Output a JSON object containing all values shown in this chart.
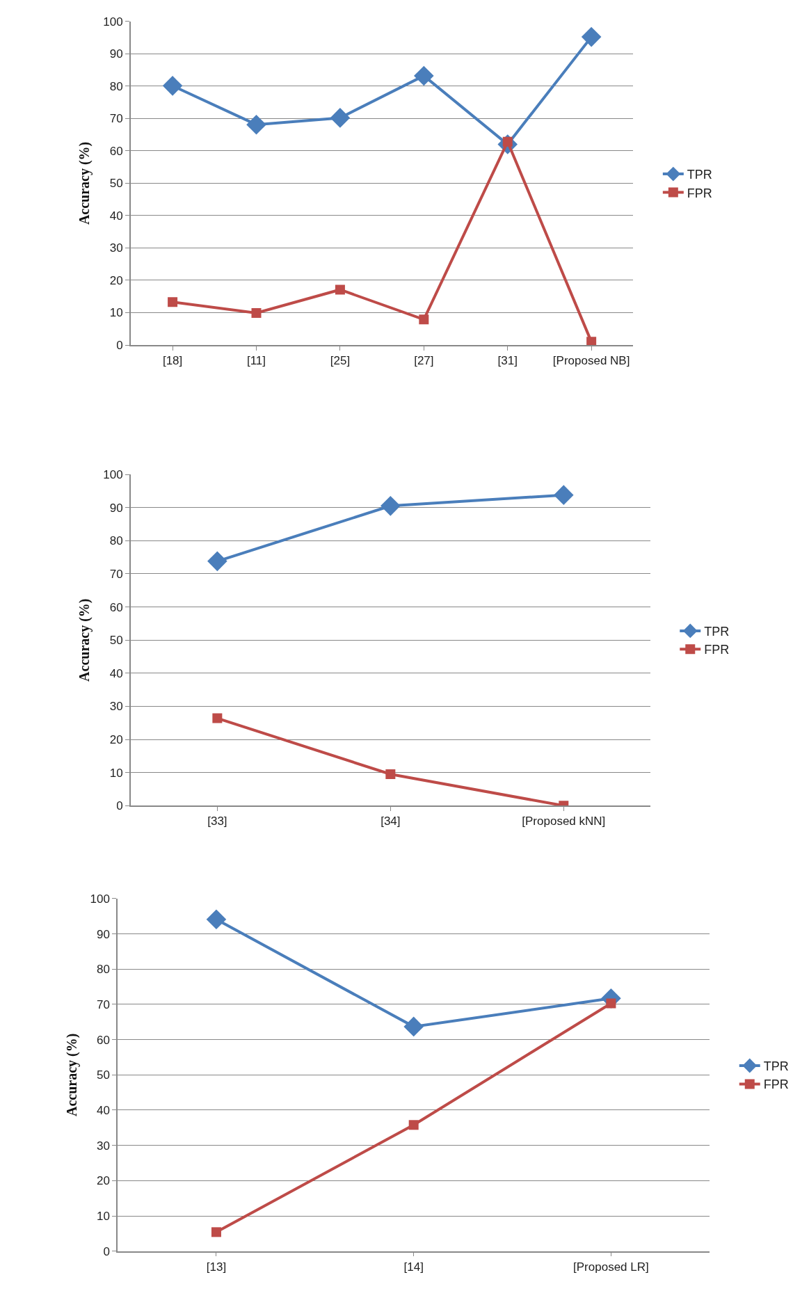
{
  "chart_data": [
    {
      "type": "line",
      "categories": [
        "[18]",
        "[11]",
        "[25]",
        "[27]",
        "[31]",
        "[Proposed NB]"
      ],
      "ylabel": "Accuracy (%)",
      "ylim": [
        0,
        100
      ],
      "yticks": [
        0,
        10,
        20,
        30,
        40,
        50,
        60,
        70,
        80,
        90,
        100
      ],
      "grid": "y",
      "legend": "right",
      "series": [
        {
          "name": "TPR",
          "color": "#4a7ebb",
          "marker": "diamond",
          "values": [
            80.1,
            68.1,
            70.2,
            83.2,
            62,
            95.2
          ]
        },
        {
          "name": "FPR",
          "color": "#be4b48",
          "marker": "square",
          "values": [
            13.3,
            9.9,
            17.1,
            7.9,
            62.8,
            1.0
          ]
        }
      ]
    },
    {
      "type": "line",
      "categories": [
        "[33]",
        "[34]",
        "[Proposed kNN]"
      ],
      "ylabel": "Accuracy (%)",
      "ylim": [
        0,
        100
      ],
      "yticks": [
        0,
        10,
        20,
        30,
        40,
        50,
        60,
        70,
        80,
        90,
        100
      ],
      "grid": "y",
      "legend": "right",
      "series": [
        {
          "name": "TPR",
          "color": "#4a7ebb",
          "marker": "diamond",
          "values": [
            73.8,
            90.5,
            93.8
          ]
        },
        {
          "name": "FPR",
          "color": "#be4b48",
          "marker": "square",
          "values": [
            26.4,
            9.5,
            0
          ]
        }
      ]
    },
    {
      "type": "line",
      "categories": [
        "[13]",
        "[14]",
        "[Proposed LR]"
      ],
      "ylabel": "Accuracy (%)",
      "ylim": [
        0,
        100
      ],
      "yticks": [
        0,
        10,
        20,
        30,
        40,
        50,
        60,
        70,
        80,
        90,
        100
      ],
      "grid": "y",
      "legend": "right",
      "series": [
        {
          "name": "TPR",
          "color": "#4a7ebb",
          "marker": "diamond",
          "values": [
            94.1,
            63.7,
            71.7
          ]
        },
        {
          "name": "FPR",
          "color": "#be4b48",
          "marker": "square",
          "values": [
            5.4,
            35.8,
            70.3
          ]
        }
      ]
    }
  ]
}
